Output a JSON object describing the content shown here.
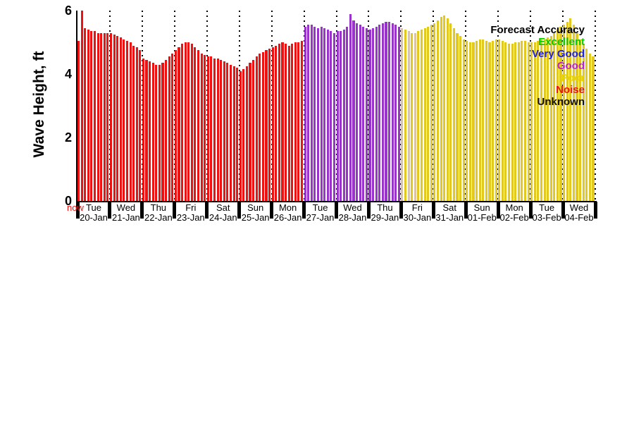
{
  "chart": {
    "now_label": "now",
    "legend": {
      "title": "Forecast Accuracy",
      "entries": [
        {
          "label": "Excellent",
          "color": "#00cc00"
        },
        {
          "label": "Very Good",
          "color": "#2222dd"
        },
        {
          "label": "Good",
          "color": "#bb22cc"
        },
        {
          "label": "Poor",
          "color": "#e8d800"
        },
        {
          "label": "Noise",
          "color": "#ee1111"
        },
        {
          "label": "Unknown",
          "color": "#111111"
        }
      ]
    }
  },
  "chart_data": {
    "type": "bar",
    "title": "",
    "xlabel": "",
    "ylabel": "Wave Height, ft",
    "ylim": [
      0,
      6
    ],
    "y_ticks": [
      0,
      2,
      4,
      6
    ],
    "grid": "vertical-dotted-at-day-boundaries",
    "legend_position": "upper-right-inside",
    "palette": {
      "noise": "#ee1111",
      "good": "#9933cc",
      "poor": "#e3c91e",
      "fade": "#d9c2a8"
    },
    "days": [
      {
        "label": "Tue",
        "date": "20-Jan",
        "color": "noise",
        "values": [
          5.05,
          6.0,
          5.45,
          5.4,
          5.35,
          5.35,
          5.3,
          5.3,
          5.3,
          5.3
        ]
      },
      {
        "label": "Wed",
        "date": "21-Jan",
        "color": "noise",
        "values": [
          5.3,
          5.25,
          5.2,
          5.15,
          5.1,
          5.05,
          5.0,
          4.9,
          4.85,
          4.75
        ]
      },
      {
        "label": "Thu",
        "date": "22-Jan",
        "color": "noise",
        "values": [
          4.5,
          4.45,
          4.4,
          4.35,
          4.3,
          4.3,
          4.35,
          4.45,
          4.55,
          4.65
        ]
      },
      {
        "label": "Fri",
        "date": "23-Jan",
        "color": "noise",
        "values": [
          4.75,
          4.85,
          4.95,
          5.0,
          5.0,
          4.95,
          4.85,
          4.75,
          4.65,
          4.6
        ]
      },
      {
        "label": "Sat",
        "date": "24-Jan",
        "color": "noise",
        "values": [
          4.55,
          4.55,
          4.5,
          4.5,
          4.45,
          4.4,
          4.35,
          4.3,
          4.25,
          4.2
        ]
      },
      {
        "label": "Sun",
        "date": "25-Jan",
        "color": "noise",
        "values": [
          4.1,
          4.15,
          4.25,
          4.35,
          4.45,
          4.55,
          4.65,
          4.7,
          4.75,
          4.8
        ]
      },
      {
        "label": "Mon",
        "date": "26-Jan",
        "color": "noise",
        "values": [
          4.85,
          4.9,
          4.95,
          5.0,
          4.95,
          4.9,
          4.95,
          5.0,
          5.0,
          5.05
        ]
      },
      {
        "label": "Tue",
        "date": "27-Jan",
        "color": "good",
        "values": [
          5.5,
          5.55,
          5.55,
          5.5,
          5.45,
          5.5,
          5.45,
          5.4,
          5.35,
          5.3
        ]
      },
      {
        "label": "Wed",
        "date": "28-Jan",
        "color": "good",
        "values": [
          5.35,
          5.35,
          5.4,
          5.5,
          5.9,
          5.7,
          5.6,
          5.55,
          5.5,
          5.45
        ]
      },
      {
        "label": "Thu",
        "date": "29-Jan",
        "color": "good",
        "values": [
          5.4,
          5.45,
          5.5,
          5.55,
          5.6,
          5.65,
          5.65,
          5.6,
          5.55,
          5.5
        ]
      },
      {
        "label": "Fri",
        "date": "30-Jan",
        "color": "poor",
        "bar_colors": [
          "fade",
          "poor",
          "fade",
          "poor",
          "fade",
          "poor",
          "poor",
          "poor",
          "poor",
          "poor"
        ],
        "values": [
          5.45,
          5.4,
          5.35,
          5.3,
          5.3,
          5.35,
          5.4,
          5.45,
          5.5,
          5.55
        ]
      },
      {
        "label": "Sat",
        "date": "31-Jan",
        "color": "poor",
        "values": [
          5.6,
          5.7,
          5.8,
          5.85,
          5.75,
          5.6,
          5.45,
          5.3,
          5.2,
          5.1
        ]
      },
      {
        "label": "Sun",
        "date": "01-Feb",
        "color": "poor",
        "values": [
          5.05,
          5.0,
          5.0,
          5.05,
          5.1,
          5.1,
          5.05,
          5.0,
          5.05,
          5.1
        ]
      },
      {
        "label": "Mon",
        "date": "02-Feb",
        "color": "poor",
        "values": [
          5.1,
          5.05,
          5.0,
          4.95,
          4.95,
          5.0,
          5.0,
          5.05,
          5.05,
          5.0
        ]
      },
      {
        "label": "Tue",
        "date": "03-Feb",
        "color": "poor",
        "values": [
          5.0,
          5.0,
          5.05,
          5.1,
          5.1,
          5.15,
          5.2,
          5.3,
          5.4,
          5.5
        ]
      },
      {
        "label": "Wed",
        "date": "04-Feb",
        "color": "poor",
        "values": [
          5.55,
          5.65,
          5.75,
          5.55,
          5.3,
          5.1,
          4.95,
          4.8,
          4.65,
          4.55
        ]
      }
    ]
  }
}
